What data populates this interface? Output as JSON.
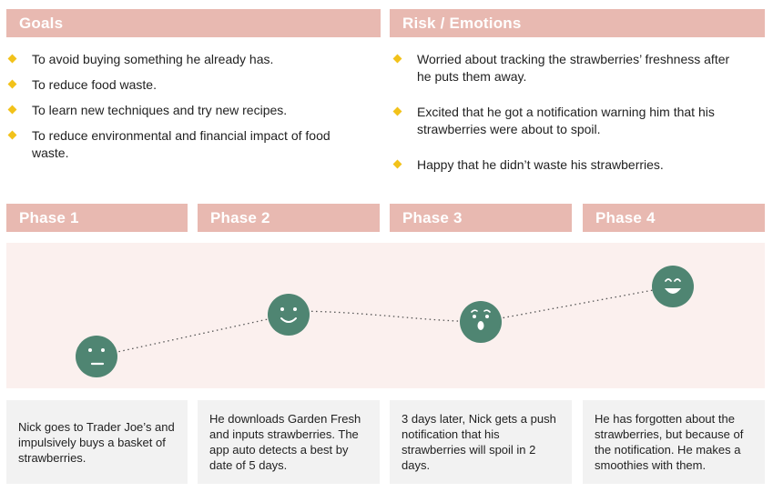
{
  "goals": {
    "title": "Goals",
    "items": [
      "To avoid buying something he already has.",
      "To reduce food waste.",
      "To learn new techniques and try new recipes.",
      "To reduce environmental and financial impact of food waste."
    ]
  },
  "risk": {
    "title": "Risk / Emotions",
    "items": [
      "Worried about tracking the strawberries’ freshness after he puts them away.",
      "Excited that he got a notification warning him that his strawberries were about to spoil.",
      "Happy that he didn’t waste his strawberries."
    ]
  },
  "phases": [
    {
      "label": "Phase 1",
      "emotion": "neutral-face-icon",
      "description": "Nick goes to Trader Joe’s and impulsively buys a basket of strawberries."
    },
    {
      "label": "Phase 2",
      "emotion": "smile-face-icon",
      "description": "He downloads Garden Fresh and inputs strawberries. The app auto detects a best by date of 5 days."
    },
    {
      "label": "Phase 3",
      "emotion": "surprised-face-icon",
      "description": "3 days later, Nick gets a push notification that his strawberries will spoil in 2 days."
    },
    {
      "label": "Phase 4",
      "emotion": "happy-face-icon",
      "description": "He has forgotten about the strawberries, but because of the notification. He makes a smoothies with them."
    }
  ],
  "colors": {
    "header_bg": "#e8b9b1",
    "bullet": "#f2c21a",
    "face": "#4f8572",
    "journey_bg": "#fbf0ee",
    "card_bg": "#f2f2f2"
  }
}
